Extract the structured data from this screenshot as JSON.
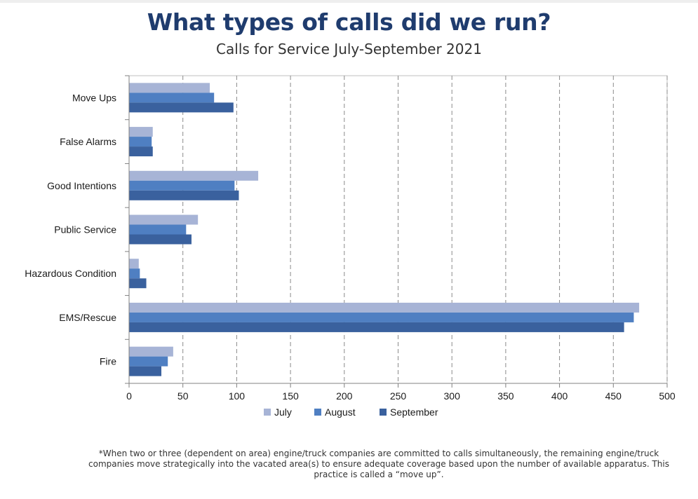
{
  "title": "What types of calls did we run?",
  "subtitle": "Calls for Service July-September 2021",
  "footnote": "*When two or three (dependent on area) engine/truck companies are committed to calls simultaneously, the remaining engine/truck companies move strategically into the vacated area(s) to ensure adequate coverage based upon the number of available apparatus. This practice is called a “move up”.",
  "colors": {
    "title": "#1f3c6e",
    "july": "#a7b4d6",
    "august": "#4f7fc2",
    "september": "#3a619e"
  },
  "chart_data": {
    "type": "bar",
    "orientation": "horizontal",
    "categories": [
      "Move Ups",
      "False Alarms",
      "Good Intentions",
      "Public Service",
      "Hazardous Condition",
      "EMS/Rescue",
      "Fire"
    ],
    "series": [
      {
        "name": "July",
        "color": "#a7b4d6",
        "values": [
          75,
          22,
          120,
          64,
          9,
          474,
          41
        ]
      },
      {
        "name": "August",
        "color": "#4f7fc2",
        "values": [
          79,
          21,
          98,
          53,
          10,
          469,
          36
        ]
      },
      {
        "name": "September",
        "color": "#3a619e",
        "values": [
          97,
          22,
          102,
          58,
          16,
          460,
          30
        ]
      }
    ],
    "xlim": [
      0,
      500
    ],
    "xticks": [
      "0",
      "50",
      "100",
      "150",
      "200",
      "250",
      "300",
      "350",
      "400",
      "450",
      "500"
    ],
    "grid": "vertical dashed",
    "legend": "bottom"
  }
}
